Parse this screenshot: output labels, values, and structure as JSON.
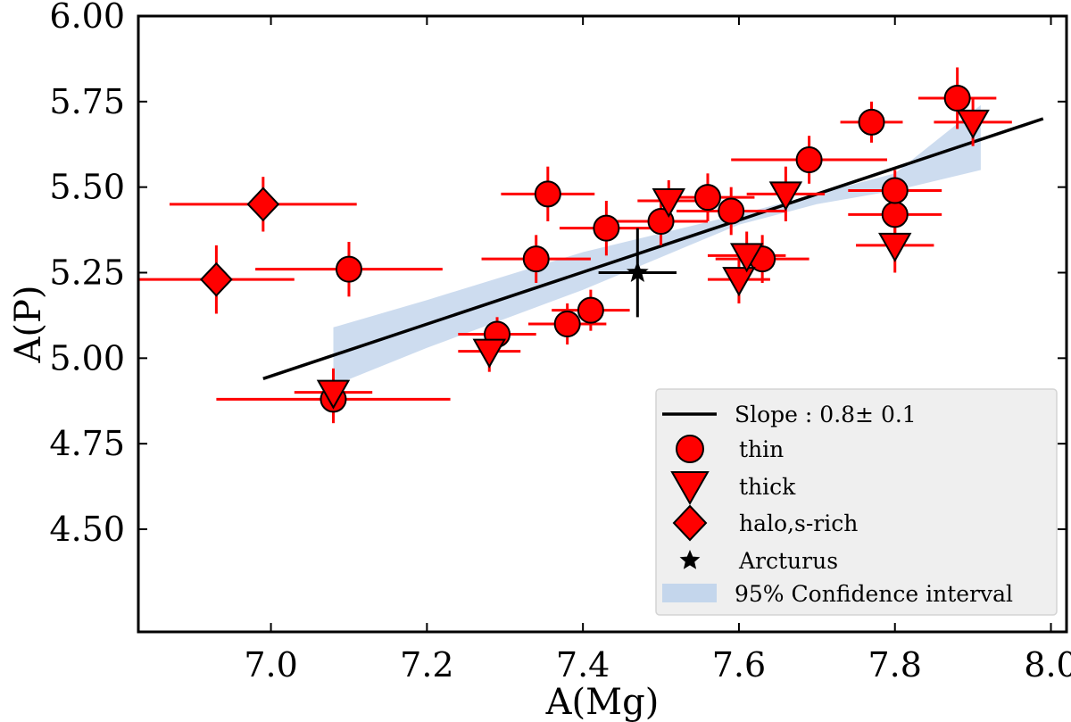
{
  "chart_data": {
    "type": "scatter",
    "xlabel": "A(Mg)",
    "ylabel": "A(P)",
    "xlim": [
      6.83,
      8.02
    ],
    "ylim": [
      4.2,
      6.0
    ],
    "xticks": [
      "7.0",
      "7.2",
      "7.4",
      "7.6",
      "7.8",
      "8.0"
    ],
    "xtick_values": [
      7.0,
      7.2,
      7.4,
      7.6,
      7.8,
      8.0
    ],
    "yticks": [
      "4.50",
      "4.75",
      "5.00",
      "5.25",
      "5.50",
      "5.75",
      "6.00"
    ],
    "ytick_values": [
      4.5,
      4.75,
      5.0,
      5.25,
      5.5,
      5.75,
      6.0
    ],
    "grid": false,
    "legend_position": "lower-right",
    "colors": {
      "marker": "#ff0000",
      "errorbar": "#ff0000",
      "fit": "#000000",
      "band": "#c4d6ec",
      "arcturus": "#000000"
    },
    "fit_line": {
      "label": "Slope : 0.8± 0.1",
      "x": [
        6.99,
        7.99
      ],
      "y": [
        4.94,
        5.7
      ]
    },
    "confidence_band": {
      "label": "95% Confidence interval",
      "x": [
        7.08,
        7.2,
        7.4,
        7.6,
        7.7,
        7.8,
        7.91
      ],
      "upper": [
        5.09,
        5.17,
        5.31,
        5.42,
        5.48,
        5.54,
        5.74
      ],
      "lower": [
        4.92,
        5.03,
        5.2,
        5.39,
        5.45,
        5.49,
        5.55
      ]
    },
    "series": [
      {
        "name": "thin",
        "marker": "circle",
        "points": [
          {
            "x": 7.08,
            "y": 4.88,
            "xerr": 0.15,
            "yerr": 0.07
          },
          {
            "x": 7.1,
            "y": 5.26,
            "xerr": 0.12,
            "yerr": 0.08
          },
          {
            "x": 7.29,
            "y": 5.07,
            "xerr": 0.05,
            "yerr": 0.05
          },
          {
            "x": 7.34,
            "y": 5.29,
            "xerr": 0.07,
            "yerr": 0.07
          },
          {
            "x": 7.355,
            "y": 5.48,
            "xerr": 0.06,
            "yerr": 0.08
          },
          {
            "x": 7.38,
            "y": 5.1,
            "xerr": 0.05,
            "yerr": 0.06
          },
          {
            "x": 7.41,
            "y": 5.14,
            "xerr": 0.05,
            "yerr": 0.06
          },
          {
            "x": 7.43,
            "y": 5.38,
            "xerr": 0.06,
            "yerr": 0.08
          },
          {
            "x": 7.5,
            "y": 5.4,
            "xerr": 0.06,
            "yerr": 0.07
          },
          {
            "x": 7.56,
            "y": 5.47,
            "xerr": 0.06,
            "yerr": 0.07
          },
          {
            "x": 7.59,
            "y": 5.43,
            "xerr": 0.07,
            "yerr": 0.07
          },
          {
            "x": 7.63,
            "y": 5.29,
            "xerr": 0.06,
            "yerr": 0.07
          },
          {
            "x": 7.69,
            "y": 5.58,
            "xerr": 0.1,
            "yerr": 0.07
          },
          {
            "x": 7.77,
            "y": 5.69,
            "xerr": 0.04,
            "yerr": 0.06
          },
          {
            "x": 7.8,
            "y": 5.42,
            "xerr": 0.06,
            "yerr": 0.07
          },
          {
            "x": 7.8,
            "y": 5.49,
            "xerr": 0.06,
            "yerr": 0.06
          },
          {
            "x": 7.88,
            "y": 5.76,
            "xerr": 0.05,
            "yerr": 0.09
          }
        ]
      },
      {
        "name": "thick",
        "marker": "triangle-down",
        "points": [
          {
            "x": 7.08,
            "y": 4.9,
            "xerr": 0.05,
            "yerr": 0.07
          },
          {
            "x": 7.28,
            "y": 5.02,
            "xerr": 0.04,
            "yerr": 0.06
          },
          {
            "x": 7.51,
            "y": 5.46,
            "xerr": 0.04,
            "yerr": 0.06
          },
          {
            "x": 7.6,
            "y": 5.23,
            "xerr": 0.04,
            "yerr": 0.07
          },
          {
            "x": 7.61,
            "y": 5.3,
            "xerr": 0.05,
            "yerr": 0.07
          },
          {
            "x": 7.66,
            "y": 5.48,
            "xerr": 0.05,
            "yerr": 0.08
          },
          {
            "x": 7.8,
            "y": 5.33,
            "xerr": 0.05,
            "yerr": 0.08
          },
          {
            "x": 7.9,
            "y": 5.69,
            "xerr": 0.05,
            "yerr": 0.07
          }
        ]
      },
      {
        "name": "halo,s-rich",
        "marker": "diamond",
        "points": [
          {
            "x": 6.93,
            "y": 5.23,
            "xerr": 0.1,
            "yerr": 0.1
          },
          {
            "x": 6.99,
            "y": 5.45,
            "xerr": 0.12,
            "yerr": 0.08
          }
        ]
      },
      {
        "name": "Arcturus",
        "marker": "star",
        "points": [
          {
            "x": 7.47,
            "y": 5.25,
            "xerr": 0.05,
            "yerr": 0.13
          }
        ]
      }
    ]
  }
}
